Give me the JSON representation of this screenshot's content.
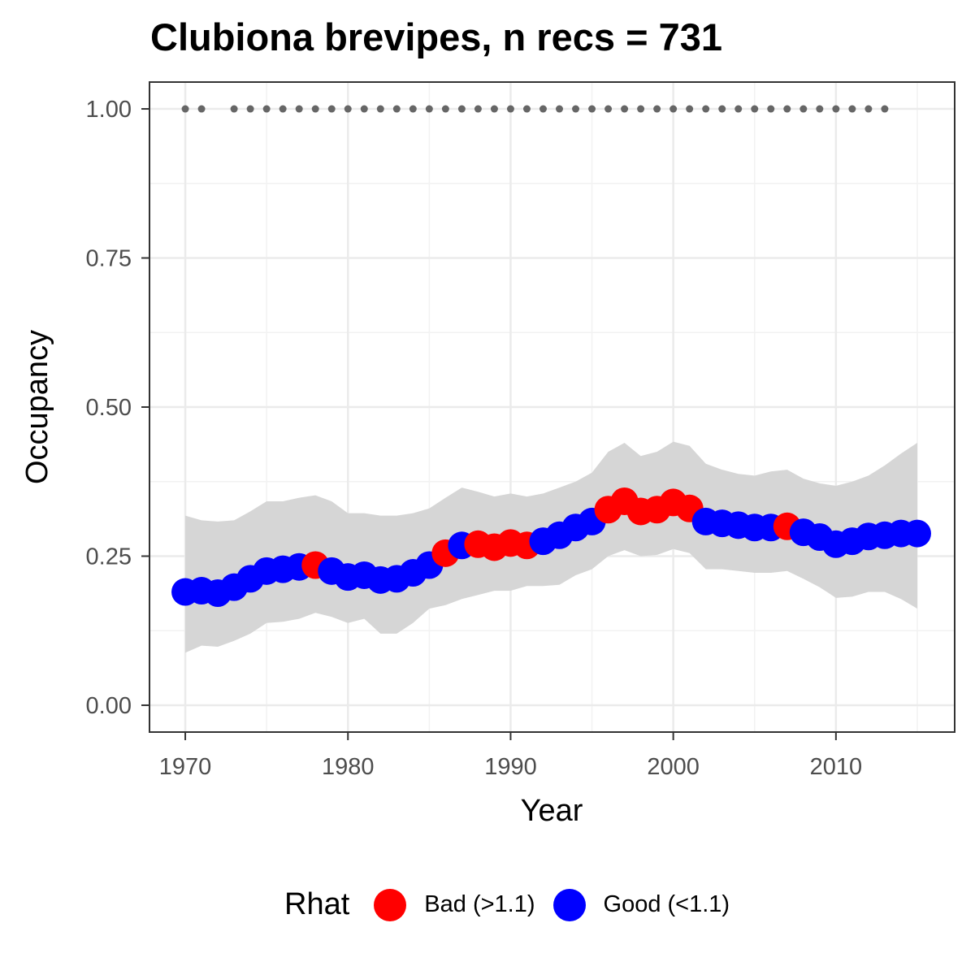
{
  "chart_data": {
    "type": "scatter",
    "title": "Clubiona brevipes, n recs = 731",
    "xlabel": "Year",
    "ylabel": "Occupancy",
    "xlim": [
      1967.8,
      1917.3
    ],
    "ylim": [
      -0.045,
      1.045
    ],
    "x_ticks": [
      {
        "value": 1970,
        "label": "1970"
      },
      {
        "value": 1980,
        "label": "1980"
      },
      {
        "value": 1990,
        "label": "1990"
      },
      {
        "value": 2000,
        "label": "2000"
      },
      {
        "value": 2010,
        "label": "2010"
      }
    ],
    "y_ticks": [
      {
        "value": 0,
        "label": "0.00"
      },
      {
        "value": 0.25,
        "label": "0.25"
      },
      {
        "value": 0.5,
        "label": "0.50"
      },
      {
        "value": 0.75,
        "label": "0.75"
      },
      {
        "value": 1.0,
        "label": "1.00"
      }
    ],
    "grid": true,
    "legend": {
      "title": "Rhat",
      "position": "bottom",
      "entries": [
        {
          "label": "Bad (>1.1)",
          "color": "#ff0000"
        },
        {
          "label": "Good (<1.1)",
          "color": "#0000ff"
        }
      ]
    },
    "series": [
      {
        "name": "Occupancy",
        "x": [
          1970,
          1971,
          1972,
          1973,
          1974,
          1975,
          1976,
          1977,
          1978,
          1979,
          1980,
          1981,
          1982,
          1983,
          1984,
          1985,
          1986,
          1987,
          1988,
          1989,
          1990,
          1991,
          1992,
          1993,
          1994,
          1995,
          1996,
          1997,
          1998,
          1999,
          2000,
          2001,
          2002,
          2003,
          2004,
          2005,
          2006,
          2007,
          2008,
          2009,
          2010,
          2011,
          2012,
          2013,
          2014,
          2015
        ],
        "y": [
          0.19,
          0.192,
          0.188,
          0.198,
          0.212,
          0.225,
          0.228,
          0.232,
          0.235,
          0.225,
          0.215,
          0.218,
          0.21,
          0.212,
          0.222,
          0.235,
          0.255,
          0.268,
          0.27,
          0.265,
          0.272,
          0.268,
          0.275,
          0.285,
          0.298,
          0.308,
          0.328,
          0.342,
          0.325,
          0.328,
          0.34,
          0.33,
          0.308,
          0.305,
          0.302,
          0.298,
          0.298,
          0.3,
          0.29,
          0.282,
          0.27,
          0.275,
          0.283,
          0.285,
          0.288,
          0.288
        ],
        "lower": [
          0.088,
          0.1,
          0.098,
          0.108,
          0.12,
          0.138,
          0.14,
          0.145,
          0.155,
          0.148,
          0.138,
          0.145,
          0.12,
          0.12,
          0.138,
          0.162,
          0.168,
          0.178,
          0.185,
          0.192,
          0.192,
          0.2,
          0.2,
          0.202,
          0.218,
          0.228,
          0.25,
          0.26,
          0.25,
          0.252,
          0.262,
          0.255,
          0.228,
          0.228,
          0.225,
          0.222,
          0.222,
          0.225,
          0.212,
          0.198,
          0.18,
          0.182,
          0.19,
          0.19,
          0.178,
          0.162
        ],
        "upper": [
          0.318,
          0.31,
          0.308,
          0.31,
          0.325,
          0.342,
          0.342,
          0.348,
          0.352,
          0.342,
          0.322,
          0.322,
          0.318,
          0.318,
          0.322,
          0.33,
          0.348,
          0.365,
          0.358,
          0.35,
          0.355,
          0.35,
          0.355,
          0.365,
          0.375,
          0.39,
          0.425,
          0.44,
          0.418,
          0.425,
          0.442,
          0.435,
          0.405,
          0.395,
          0.388,
          0.385,
          0.392,
          0.395,
          0.38,
          0.372,
          0.368,
          0.375,
          0.385,
          0.402,
          0.422,
          0.44
        ],
        "rhat": [
          "good",
          "good",
          "good",
          "good",
          "good",
          "good",
          "good",
          "good",
          "bad",
          "good",
          "good",
          "good",
          "good",
          "good",
          "good",
          "good",
          "bad",
          "good",
          "bad",
          "bad",
          "bad",
          "bad",
          "good",
          "good",
          "good",
          "good",
          "bad",
          "bad",
          "bad",
          "bad",
          "bad",
          "bad",
          "good",
          "good",
          "good",
          "good",
          "good",
          "bad",
          "good",
          "good",
          "good",
          "good",
          "good",
          "good",
          "good",
          "good"
        ]
      },
      {
        "name": "Records",
        "x": [
          1970,
          1971,
          1973,
          1974,
          1975,
          1976,
          1977,
          1978,
          1979,
          1980,
          1981,
          1982,
          1983,
          1984,
          1985,
          1986,
          1987,
          1988,
          1989,
          1990,
          1991,
          1992,
          1993,
          1994,
          1995,
          1996,
          1997,
          1998,
          1999,
          2000,
          2001,
          2002,
          2003,
          2004,
          2005,
          2006,
          2007,
          2008,
          2009,
          2010,
          2011,
          2012,
          2013
        ],
        "y": 1.0,
        "color": "#666666"
      }
    ]
  }
}
